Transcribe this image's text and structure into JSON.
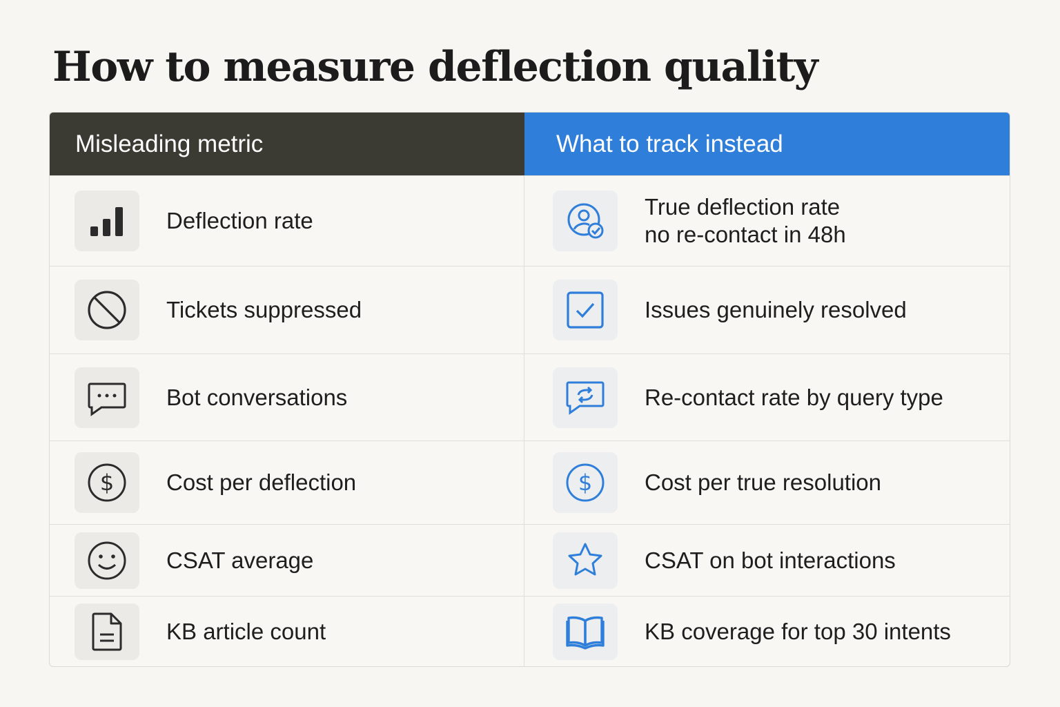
{
  "title": "How to measure deflection quality",
  "header": {
    "left": "Misleading metric",
    "right": "What to track instead"
  },
  "colors": {
    "header_left": "#3b3a33",
    "header_right": "#2f7fda",
    "icon_dark": "#2b2b2b",
    "icon_blue": "#2f7fda"
  },
  "rows": [
    {
      "misleading": {
        "icon": "bar-chart-icon",
        "label": "Deflection rate"
      },
      "instead": {
        "icon": "user-check-icon",
        "label_line1": "True deflection rate",
        "label_line2": "no re-contact in 48h"
      }
    },
    {
      "misleading": {
        "icon": "prohibited-icon",
        "label": "Tickets suppressed"
      },
      "instead": {
        "icon": "checkbox-icon",
        "label": "Issues genuinely resolved"
      }
    },
    {
      "misleading": {
        "icon": "chat-bubble-icon",
        "label": "Bot conversations"
      },
      "instead": {
        "icon": "chat-repeat-icon",
        "label": "Re-contact rate by query type"
      }
    },
    {
      "misleading": {
        "icon": "dollar-circle-icon",
        "label": "Cost per deflection"
      },
      "instead": {
        "icon": "dollar-circle-icon",
        "label": "Cost per true resolution"
      }
    },
    {
      "misleading": {
        "icon": "smiley-icon",
        "label": "CSAT average"
      },
      "instead": {
        "icon": "star-icon",
        "label": "CSAT on bot interactions"
      }
    },
    {
      "misleading": {
        "icon": "document-icon",
        "label": "KB article count"
      },
      "instead": {
        "icon": "open-book-icon",
        "label": "KB coverage for top 30 intents"
      }
    }
  ]
}
